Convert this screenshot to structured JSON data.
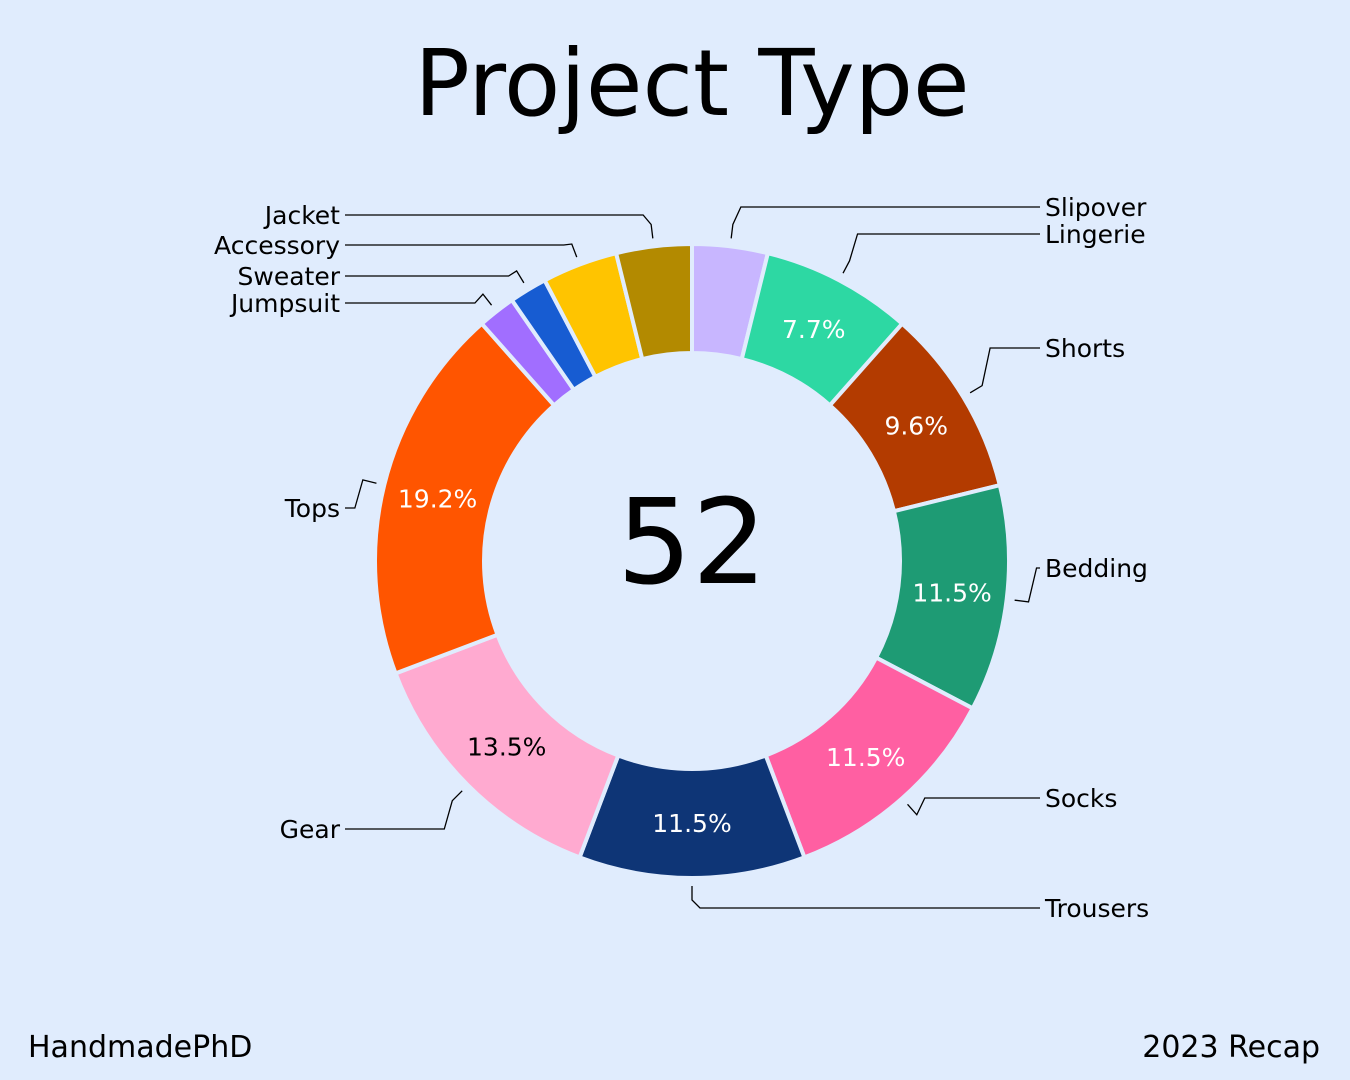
{
  "chart_data": {
    "type": "pie",
    "title": "Project Type",
    "center_total": "52",
    "categories": [
      "Slipover",
      "Lingerie",
      "Shorts",
      "Bedding",
      "Socks",
      "Trousers",
      "Gear",
      "Tops",
      "Jumpsuit",
      "Sweater",
      "Accessory",
      "Jacket"
    ],
    "values": [
      2,
      4,
      5,
      6,
      6,
      6,
      7,
      10,
      1,
      1,
      2,
      2
    ],
    "percent_labels": [
      "",
      "7.7%",
      "9.6%",
      "11.5%",
      "11.5%",
      "11.5%",
      "13.5%",
      "19.2%",
      "",
      "",
      "",
      ""
    ],
    "colors": [
      "#c8b6ff",
      "#2dd8a3",
      "#b33b00",
      "#1e9b74",
      "#ff5fa2",
      "#0e3576",
      "#ffaad0",
      "#ff5500",
      "#a16eff",
      "#175cd2",
      "#ffc400",
      "#b38a00"
    ],
    "label_colors": [
      "#ffffff",
      "#ffffff",
      "#ffffff",
      "#ffffff",
      "#ffffff",
      "#ffffff",
      "#000000",
      "#ffffff",
      "#ffffff",
      "#ffffff",
      "#ffffff",
      "#ffffff"
    ],
    "legend": "none"
  },
  "footer": {
    "left": "HandmadePhD",
    "right": "2023 Recap"
  }
}
